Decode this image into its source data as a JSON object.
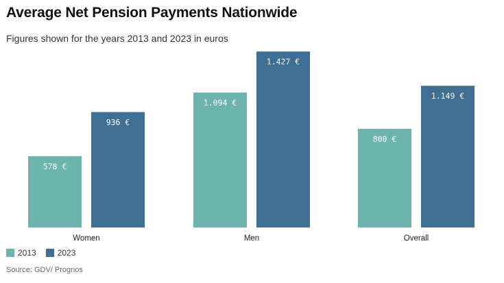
{
  "title": "Average Net Pension Payments Nationwide",
  "subtitle": "Figures shown for the years 2013 and 2023 in euros",
  "source": "Source:  GDV/ Prognos",
  "colors": {
    "s2013": "#6db3ae",
    "s2023": "#3f6f94",
    "label_text": "#ffffff",
    "axis": "#999999"
  },
  "chart_data": {
    "type": "bar",
    "categories": [
      "Women",
      "Men",
      "Overall"
    ],
    "series": [
      {
        "name": "2013",
        "values": [
          578,
          1094,
          800
        ],
        "labels": [
          "578 €",
          "1.094 €",
          "800 €"
        ]
      },
      {
        "name": "2023",
        "values": [
          936,
          1427,
          1149
        ],
        "labels": [
          "936 €",
          "1.427 €",
          "1.149 €"
        ]
      }
    ],
    "title": "Average Net Pension Payments Nationwide",
    "xlabel": "",
    "ylabel": "",
    "ylim": [
      0,
      1500
    ],
    "grid": false,
    "legend": "bottom-left"
  }
}
